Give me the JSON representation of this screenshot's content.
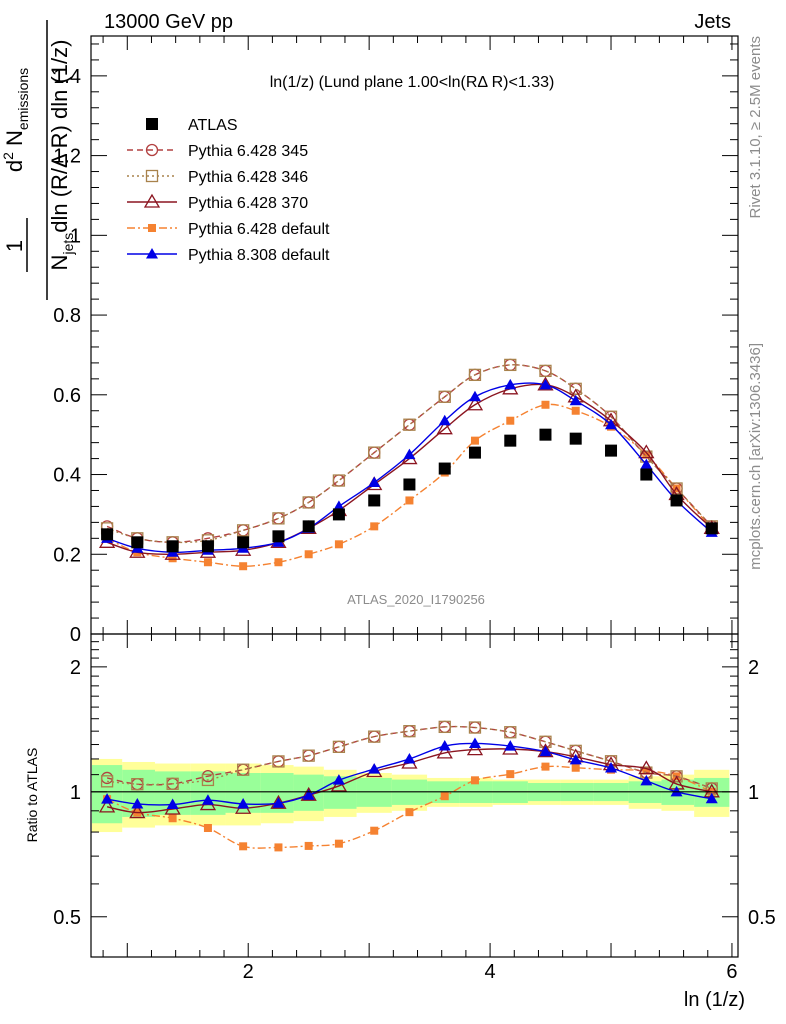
{
  "header": {
    "left": "13000 GeV pp",
    "right": "Jets"
  },
  "side_labels": {
    "rivet": "Rivet 3.1.10, ≥ 2.5M events",
    "mcplots": "mcplots.cern.ch [arXiv:1306.3436]"
  },
  "plot_title": "ln(1/z) (Lund plane 1.00<ln(RΔ R)<1.33)",
  "watermark": "ATLAS_2020_I1790256",
  "axes": {
    "x_label": "ln (1/z)",
    "y_label_main": "1/N_jets d²N_emissions / dln(R/ΔR) dln(1/z)",
    "y_label_ratio": "Ratio to ATLAS",
    "x_ticks": [
      "2",
      "4",
      "6"
    ],
    "y_ticks_main": [
      "0",
      "0.2",
      "0.4",
      "0.6",
      "0.8",
      "1",
      "1.2",
      "1.4"
    ],
    "y_ticks_ratio": [
      "0.5",
      "1",
      "2"
    ]
  },
  "colors": {
    "atlas": "#000000",
    "p345": "#b24040",
    "p346": "#a8824c",
    "p370": "#8b1520",
    "p6def": "#f58231",
    "p8def": "#0000e6",
    "band_inner": "#99ff99",
    "band_outer": "#ffff99"
  },
  "chart_data": {
    "type": "line",
    "x": [
      0.833,
      1.083,
      1.375,
      1.667,
      1.958,
      2.25,
      2.5,
      2.75,
      3.042,
      3.333,
      3.625,
      3.875,
      4.167,
      4.458,
      4.708,
      5.0,
      5.292,
      5.542,
      5.833
    ],
    "xlim": [
      0.7,
      6.05
    ],
    "ylim_main": [
      0,
      1.5
    ],
    "ylim_ratio": [
      0.4,
      2.4
    ],
    "ratio_scale": "log",
    "series": [
      {
        "name": "ATLAS",
        "key": "atlas",
        "marker": "square-filled",
        "line": "none",
        "values": [
          0.25,
          0.23,
          0.22,
          0.22,
          0.23,
          0.245,
          0.27,
          0.3,
          0.335,
          0.375,
          0.415,
          0.455,
          0.485,
          0.5,
          0.49,
          0.46,
          0.4,
          0.335,
          0.265
        ]
      },
      {
        "name": "Pythia 6.428 345",
        "key": "p345",
        "marker": "circle-open",
        "line": "dashed",
        "values": [
          0.27,
          0.24,
          0.23,
          0.24,
          0.26,
          0.29,
          0.33,
          0.385,
          0.455,
          0.525,
          0.595,
          0.65,
          0.675,
          0.66,
          0.615,
          0.545,
          0.445,
          0.365,
          0.27
        ]
      },
      {
        "name": "Pythia 6.428 346",
        "key": "p346",
        "marker": "square-open",
        "line": "dotted",
        "values": [
          0.265,
          0.24,
          0.23,
          0.235,
          0.26,
          0.29,
          0.33,
          0.385,
          0.455,
          0.525,
          0.595,
          0.65,
          0.675,
          0.66,
          0.615,
          0.545,
          0.445,
          0.365,
          0.27
        ]
      },
      {
        "name": "Pythia 6.428 370",
        "key": "p370",
        "marker": "triangle-open",
        "line": "solid",
        "values": [
          0.23,
          0.205,
          0.2,
          0.205,
          0.21,
          0.23,
          0.265,
          0.31,
          0.375,
          0.44,
          0.515,
          0.575,
          0.615,
          0.625,
          0.595,
          0.535,
          0.455,
          0.35,
          0.265
        ]
      },
      {
        "name": "Pythia 6.428 default",
        "key": "p6def",
        "marker": "square-filled-small",
        "line": "dashdot",
        "values": [
          0.24,
          0.205,
          0.19,
          0.18,
          0.17,
          0.18,
          0.2,
          0.225,
          0.27,
          0.335,
          0.405,
          0.485,
          0.535,
          0.575,
          0.56,
          0.52,
          0.45,
          0.365,
          0.265
        ]
      },
      {
        "name": "Pythia 8.308 default",
        "key": "p8def",
        "marker": "triangle-filled",
        "line": "solid",
        "values": [
          0.24,
          0.215,
          0.205,
          0.21,
          0.215,
          0.23,
          0.265,
          0.32,
          0.38,
          0.45,
          0.535,
          0.595,
          0.625,
          0.625,
          0.585,
          0.525,
          0.425,
          0.335,
          0.255
        ]
      }
    ],
    "ratio_band": {
      "inner": [
        0.16,
        0.13,
        0.12,
        0.12,
        0.11,
        0.11,
        0.1,
        0.09,
        0.08,
        0.07,
        0.06,
        0.06,
        0.06,
        0.05,
        0.05,
        0.05,
        0.06,
        0.07,
        0.08
      ],
      "outer": [
        0.2,
        0.18,
        0.17,
        0.17,
        0.17,
        0.16,
        0.15,
        0.13,
        0.11,
        0.1,
        0.08,
        0.08,
        0.07,
        0.07,
        0.07,
        0.07,
        0.09,
        0.1,
        0.13
      ]
    }
  }
}
